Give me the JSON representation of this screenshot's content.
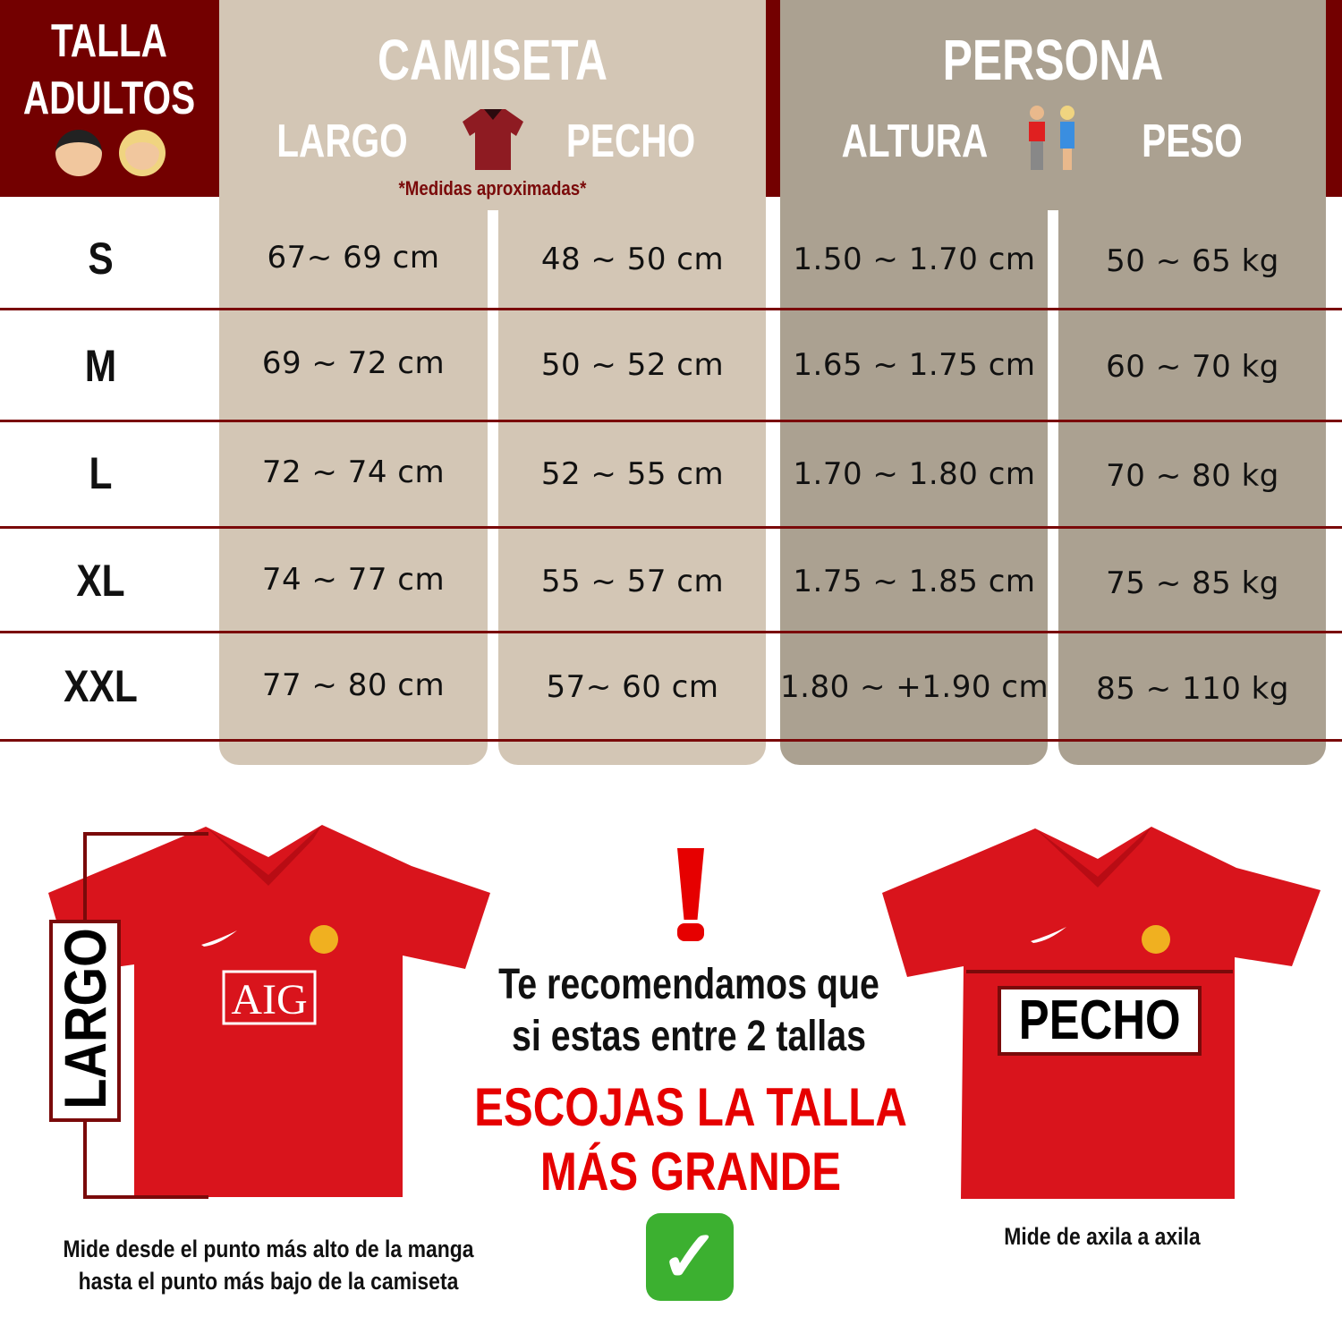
{
  "header": {
    "talla": "TALLA",
    "adultos": "ADULTOS",
    "adultos_icons": [
      "man-emoji",
      "woman-emoji"
    ],
    "camiseta": "CAMISETA",
    "largo": "LARGO",
    "pecho": "PECHO",
    "persona": "PERSONA",
    "altura": "ALTURA",
    "peso": "PESO",
    "note": "*Medidas aproximadas*"
  },
  "colors": {
    "dark_red": "#730000",
    "beige": "#d3c6b5",
    "gray": "#aba191",
    "red": "#e60000"
  },
  "rows": [
    {
      "size": "S",
      "largo": "67~ 69 cm",
      "pecho": "48 ~ 50 cm",
      "altura": "1.50 ~ 1.70 cm",
      "peso": "50 ~ 65 kg"
    },
    {
      "size": "M",
      "largo": "69 ~ 72 cm",
      "pecho": "50 ~ 52 cm",
      "altura": "1.65 ~ 1.75 cm",
      "peso": "60 ~ 70 kg"
    },
    {
      "size": "L",
      "largo": "72 ~ 74 cm",
      "pecho": "52 ~ 55 cm",
      "altura": "1.70 ~ 1.80 cm",
      "peso": "70 ~ 80 kg"
    },
    {
      "size": "XL",
      "largo": "74 ~ 77 cm",
      "pecho": "55 ~ 57 cm",
      "altura": "1.75 ~ 1.85 cm",
      "peso": "75 ~ 85 kg"
    },
    {
      "size": "XXL",
      "largo": "77 ~ 80 cm",
      "pecho": "57~ 60 cm",
      "altura": "1.80 ~ +1.90 cm",
      "peso": "85 ~ 110 kg"
    }
  ],
  "bottom": {
    "largo_label": "LARGO",
    "pecho_label": "PECHO",
    "shirt_sponsor": "AIG",
    "largo_caption_1": "Mide desde el punto más alto de la manga",
    "largo_caption_2": "hasta el punto más bajo de la camiseta",
    "pecho_caption": "Mide de axila a axila",
    "rec_1": "Te recomendamos que",
    "rec_2": "si estas entre 2 tallas",
    "rec_3": "ESCOJAS LA TALLA",
    "rec_4": "MÁS GRANDE",
    "exclamation": "!",
    "check": "✓"
  }
}
